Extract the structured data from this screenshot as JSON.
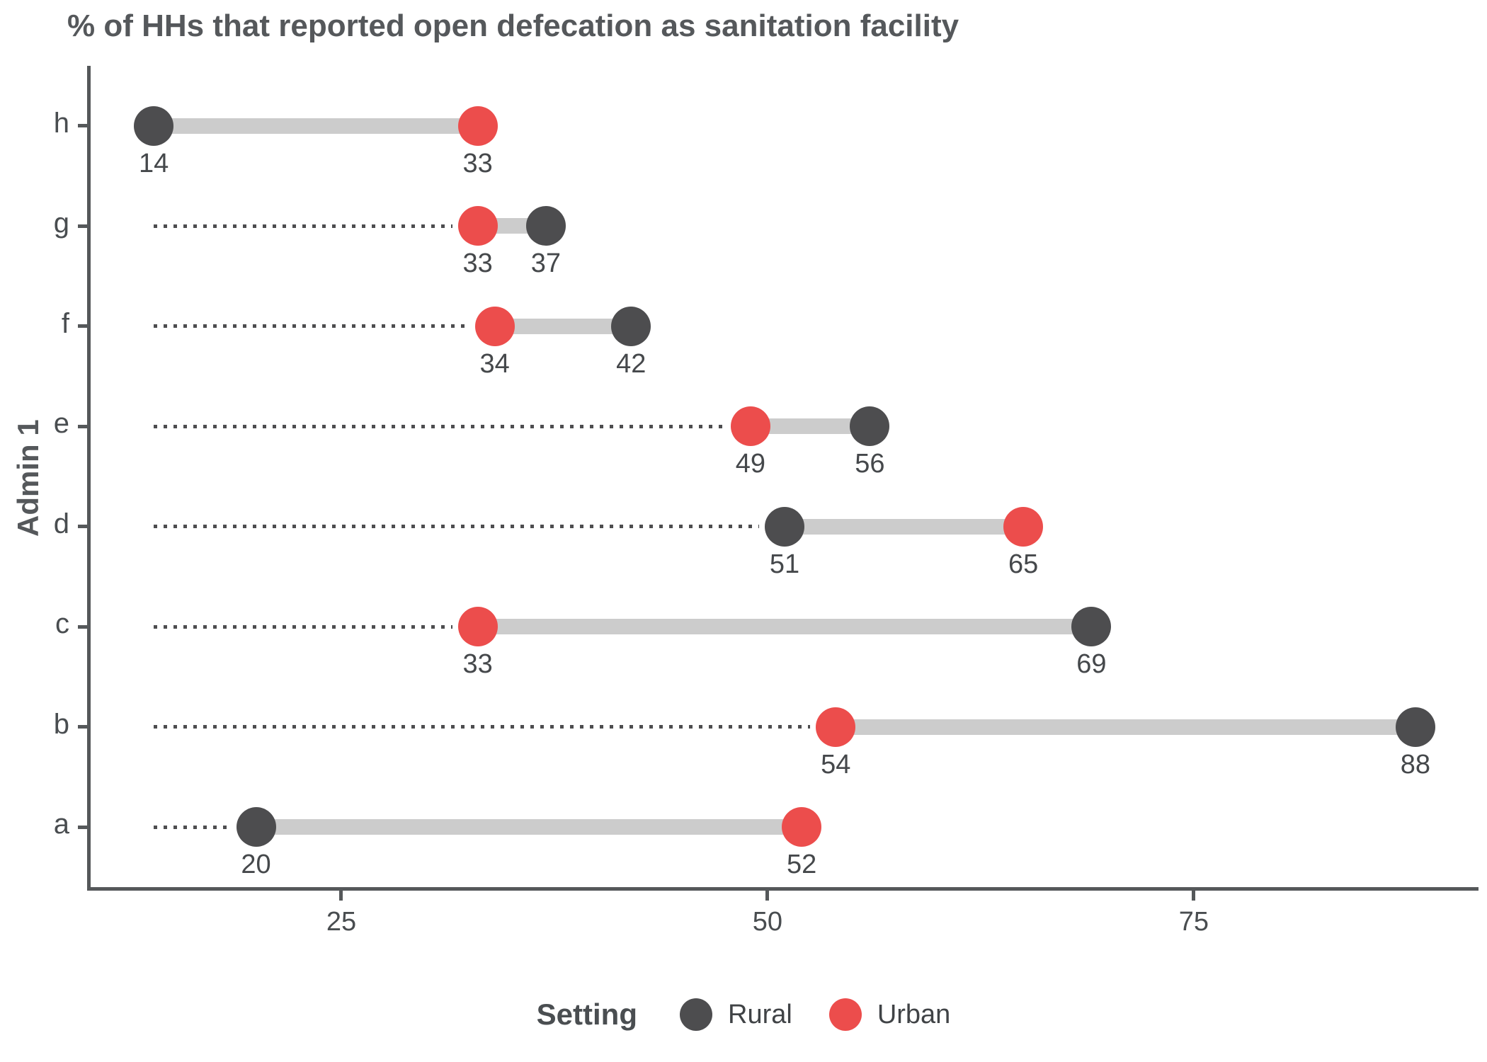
{
  "title": "% of HHs that reported open defecation as sanitation facility",
  "y_axis_label": "Admin 1",
  "legend": {
    "title": "Setting",
    "items": [
      {
        "label": "Rural",
        "color": "#4d4d4f"
      },
      {
        "label": "Urban",
        "color": "#ec4d4c"
      }
    ]
  },
  "chart_data": {
    "type": "scatter",
    "subtype": "dumbbell",
    "title": "% of HHs that reported open defecation as sanitation facility",
    "xlabel": "",
    "ylabel": "Admin 1",
    "categories": [
      "h",
      "g",
      "f",
      "e",
      "d",
      "c",
      "b",
      "a"
    ],
    "series": [
      {
        "name": "Rural",
        "color": "#4d4d4f",
        "values": [
          14,
          37,
          42,
          56,
          51,
          69,
          88,
          20
        ]
      },
      {
        "name": "Urban",
        "color": "#ec4d4c",
        "values": [
          33,
          33,
          34,
          49,
          65,
          33,
          54,
          52
        ]
      }
    ],
    "point_labels_shown": true,
    "leader_origin": 14,
    "leader_style": "dotted",
    "connector_color": "#cccccc",
    "xlim": [
      10.3,
      91.7
    ],
    "x_ticks": [
      25,
      50,
      75
    ],
    "grid": false,
    "legend_position": "bottom"
  }
}
